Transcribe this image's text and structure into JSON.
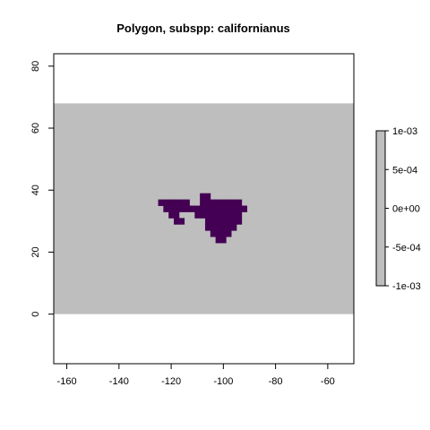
{
  "chart_data": {
    "type": "heatmap",
    "title": "Polygon, subspp: californianus",
    "xlabel": "",
    "ylabel": "",
    "xlim": [
      -165,
      -50
    ],
    "ylim": [
      -16,
      84
    ],
    "x_ticks": [
      -160,
      -140,
      -120,
      -100,
      -80,
      -60
    ],
    "x_tick_labels": [
      "-160",
      "-140",
      "-120",
      "-100",
      "-80",
      "-60"
    ],
    "y_ticks": [
      0,
      20,
      40,
      60,
      80
    ],
    "y_tick_labels": [
      "0",
      "20",
      "40",
      "60",
      "80"
    ],
    "raster_extent": {
      "xmin": -165,
      "xmax": -50,
      "ymin": 0,
      "ymax": 68
    },
    "background_color": "#bebebe",
    "polygon_color": "#440154",
    "cell_size": 2,
    "polygon_cells": [
      [
        -124,
        36
      ],
      [
        -122,
        34
      ],
      [
        -122,
        36
      ],
      [
        -120,
        32
      ],
      [
        -120,
        34
      ],
      [
        -120,
        36
      ],
      [
        -118,
        30
      ],
      [
        -118,
        32
      ],
      [
        -118,
        34
      ],
      [
        -118,
        36
      ],
      [
        -116,
        30
      ],
      [
        -116,
        34
      ],
      [
        -116,
        36
      ],
      [
        -114,
        34
      ],
      [
        -114,
        36
      ],
      [
        -112,
        34
      ],
      [
        -110,
        32
      ],
      [
        -110,
        34
      ],
      [
        -108,
        32
      ],
      [
        -108,
        34
      ],
      [
        -108,
        36
      ],
      [
        -108,
        38
      ],
      [
        -106,
        28
      ],
      [
        -106,
        30
      ],
      [
        -106,
        32
      ],
      [
        -106,
        34
      ],
      [
        -106,
        36
      ],
      [
        -106,
        38
      ],
      [
        -104,
        26
      ],
      [
        -104,
        28
      ],
      [
        -104,
        30
      ],
      [
        -104,
        32
      ],
      [
        -104,
        34
      ],
      [
        -104,
        36
      ],
      [
        -102,
        24
      ],
      [
        -102,
        26
      ],
      [
        -102,
        28
      ],
      [
        -102,
        30
      ],
      [
        -102,
        32
      ],
      [
        -102,
        34
      ],
      [
        -102,
        36
      ],
      [
        -100,
        24
      ],
      [
        -100,
        26
      ],
      [
        -100,
        28
      ],
      [
        -100,
        30
      ],
      [
        -100,
        32
      ],
      [
        -100,
        34
      ],
      [
        -100,
        36
      ],
      [
        -98,
        26
      ],
      [
        -98,
        28
      ],
      [
        -98,
        30
      ],
      [
        -98,
        32
      ],
      [
        -98,
        34
      ],
      [
        -98,
        36
      ],
      [
        -96,
        28
      ],
      [
        -96,
        30
      ],
      [
        -96,
        32
      ],
      [
        -96,
        34
      ],
      [
        -96,
        36
      ],
      [
        -94,
        30
      ],
      [
        -94,
        32
      ],
      [
        -94,
        34
      ],
      [
        -94,
        36
      ],
      [
        -92,
        34
      ]
    ],
    "legend": {
      "placement": "right",
      "range": [
        -0.001,
        0.001
      ],
      "ticks": [
        0.001,
        0.0005,
        0,
        -0.0005,
        -0.001
      ],
      "tick_labels": [
        "1e-03",
        "5e-04",
        "0e+00",
        "-5e-04",
        "-1e-03"
      ],
      "fill_color": "#bebebe"
    }
  }
}
